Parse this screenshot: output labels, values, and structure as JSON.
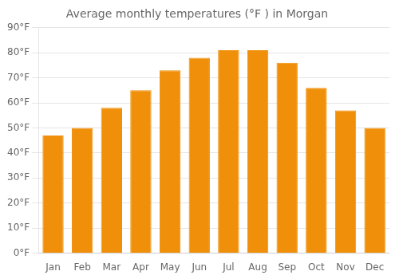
{
  "chart_data": {
    "type": "bar",
    "title": "Average monthly temperatures (°F ) in Morgan",
    "categories": [
      "Jan",
      "Feb",
      "Mar",
      "Apr",
      "May",
      "Jun",
      "Jul",
      "Aug",
      "Sep",
      "Oct",
      "Nov",
      "Dec"
    ],
    "values": [
      47,
      50,
      58,
      65,
      73,
      78,
      81,
      81,
      76,
      66,
      57,
      50
    ],
    "color": "#F0900A",
    "ylim": [
      0,
      90
    ],
    "yticks": [
      {
        "value": 0,
        "label": "0°F"
      },
      {
        "value": 10,
        "label": "10°F"
      },
      {
        "value": 20,
        "label": "20°F"
      },
      {
        "value": 30,
        "label": "30°F"
      },
      {
        "value": 40,
        "label": "40°F"
      },
      {
        "value": 50,
        "label": "50°F"
      },
      {
        "value": 60,
        "label": "60°F"
      },
      {
        "value": 70,
        "label": "70°F"
      },
      {
        "value": 80,
        "label": "80°F"
      },
      {
        "value": 90,
        "label": "90°F"
      }
    ],
    "grid": true
  }
}
